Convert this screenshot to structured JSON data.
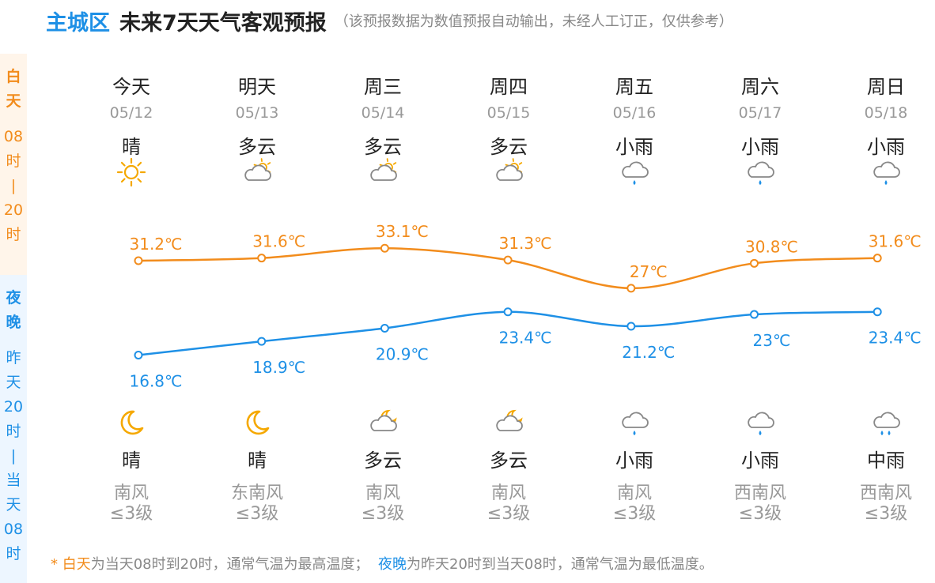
{
  "header": {
    "location": "主城区",
    "title": "未来7天天气客观预报",
    "note": "（该预报数据为数值预报自动输出，未经人工订正，仅供参考）"
  },
  "sidebar": {
    "day": [
      "白",
      "天",
      "08",
      "时",
      "|",
      "20",
      "时"
    ],
    "night": [
      "夜",
      "晚",
      "昨",
      "天",
      "20",
      "时",
      "|",
      "当",
      "天",
      "08",
      "时"
    ]
  },
  "days": [
    {
      "name": "今天",
      "date": "05/12",
      "day_weather": "晴",
      "day_icon": "sun-icon",
      "night_weather": "晴",
      "night_icon": "moon-icon",
      "wind": "南风",
      "level": "≤3级"
    },
    {
      "name": "明天",
      "date": "05/13",
      "day_weather": "多云",
      "day_icon": "partly-cloudy-icon",
      "night_weather": "晴",
      "night_icon": "moon-icon",
      "wind": "东南风",
      "level": "≤3级"
    },
    {
      "name": "周三",
      "date": "05/14",
      "day_weather": "多云",
      "day_icon": "partly-cloudy-icon",
      "night_weather": "多云",
      "night_icon": "cloudy-night-icon",
      "wind": "南风",
      "level": "≤3级"
    },
    {
      "name": "周四",
      "date": "05/15",
      "day_weather": "多云",
      "day_icon": "partly-cloudy-icon",
      "night_weather": "多云",
      "night_icon": "cloudy-night-icon",
      "wind": "南风",
      "level": "≤3级"
    },
    {
      "name": "周五",
      "date": "05/16",
      "day_weather": "小雨",
      "day_icon": "light-rain-icon",
      "night_weather": "小雨",
      "night_icon": "light-rain-icon",
      "wind": "南风",
      "level": "≤3级"
    },
    {
      "name": "周六",
      "date": "05/17",
      "day_weather": "小雨",
      "day_icon": "light-rain-icon",
      "night_weather": "小雨",
      "night_icon": "light-rain-icon",
      "wind": "西南风",
      "level": "≤3级"
    },
    {
      "name": "周日",
      "date": "05/18",
      "day_weather": "小雨",
      "day_icon": "light-rain-icon",
      "night_weather": "中雨",
      "night_icon": "moderate-rain-icon",
      "wind": "西南风",
      "level": "≤3级"
    }
  ],
  "chart_data": {
    "type": "line",
    "x": [
      "05/12",
      "05/13",
      "05/14",
      "05/15",
      "05/16",
      "05/17",
      "05/18"
    ],
    "series": [
      {
        "values": [
          31.2,
          31.6,
          33.1,
          31.3,
          27,
          30.8,
          31.6
        ],
        "labels": [
          "31.2℃",
          "31.6℃",
          "33.1℃",
          "31.3℃",
          "27℃",
          "30.8℃",
          "31.6℃"
        ],
        "color": "#f28c1c"
      },
      {
        "values": [
          16.8,
          18.9,
          20.9,
          23.4,
          21.2,
          23,
          23.4
        ],
        "labels": [
          "16.8℃",
          "18.9℃",
          "20.9℃",
          "23.4℃",
          "21.2℃",
          "23℃",
          "23.4℃"
        ],
        "color": "#1e90e6"
      }
    ],
    "grid": false,
    "legend": "none"
  },
  "footnote": {
    "star": "* ",
    "day_term": "白天",
    "day_text": "为当天08时到20时，通常气温为最高温度；",
    "night_term": "夜晚",
    "night_text": "为昨天20时到当天08时，通常气温为最低温度。"
  },
  "colors": {
    "day": "#f28c1c",
    "night": "#1e90e6",
    "sun": "#f5a800",
    "cloud": "#888888",
    "rain": "#1e90e6"
  }
}
